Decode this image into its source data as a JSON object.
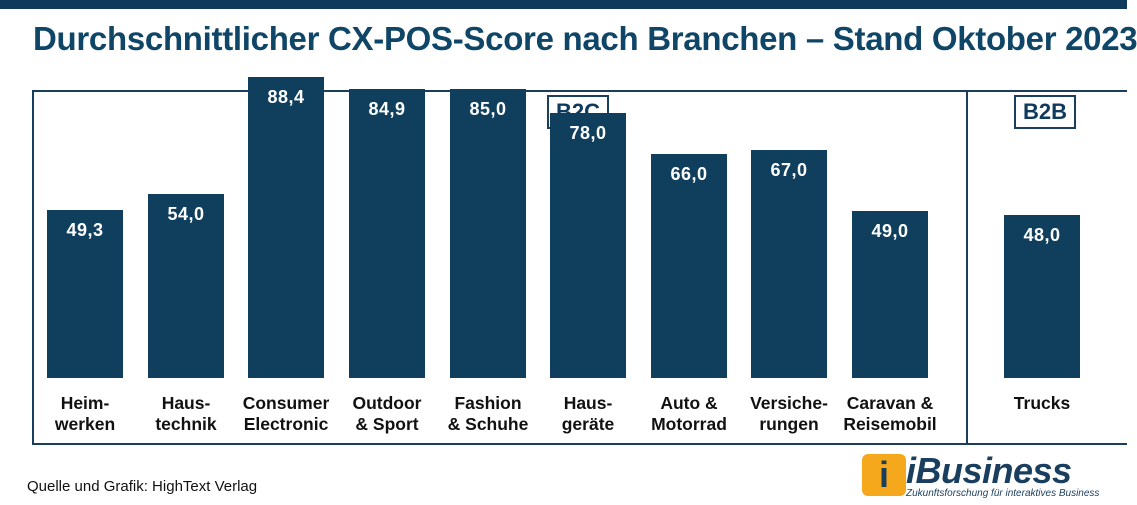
{
  "title": "Durchschnittlicher CX-POS-Score nach Branchen – Stand Oktober 2023",
  "source": "Quelle und Grafik: HighText Verlag",
  "logo": {
    "word": "iBusiness",
    "tagline": "Zukunftsforschung für interaktives Business",
    "mark": "i"
  },
  "colors": {
    "bar": "#103f5e",
    "title": "#0f4566",
    "logo_accent": "#f6a81c"
  },
  "chart_data": {
    "type": "bar",
    "title": "Durchschnittlicher CX-POS-Score nach Branchen – Stand Oktober 2023",
    "groups": [
      {
        "label": "B2C",
        "categories": [
          "Heim-\nwerken",
          "Haus-\ntechnik",
          "Consumer\nElectronic",
          "Outdoor\n& Sport",
          "Fashion\n& Schuhe",
          "Haus-\ngeräte",
          "Auto &\nMotorrad",
          "Versiche-\nrungen",
          "Caravan &\nReisemobil"
        ],
        "values": [
          49.3,
          54.0,
          88.4,
          84.9,
          85.0,
          78.0,
          66.0,
          67.0,
          49.0
        ],
        "labels": [
          "49,3",
          "54,0",
          "88,4",
          "84,9",
          "85,0",
          "78,0",
          "66,0",
          "67,0",
          "49,0"
        ]
      },
      {
        "label": "B2B",
        "categories": [
          "Trucks"
        ],
        "values": [
          48.0
        ],
        "labels": [
          "48,0"
        ]
      }
    ],
    "xlabel": "",
    "ylabel": "",
    "ylim": [
      0,
      100
    ],
    "grid": false,
    "data_labels": "inside-top"
  }
}
